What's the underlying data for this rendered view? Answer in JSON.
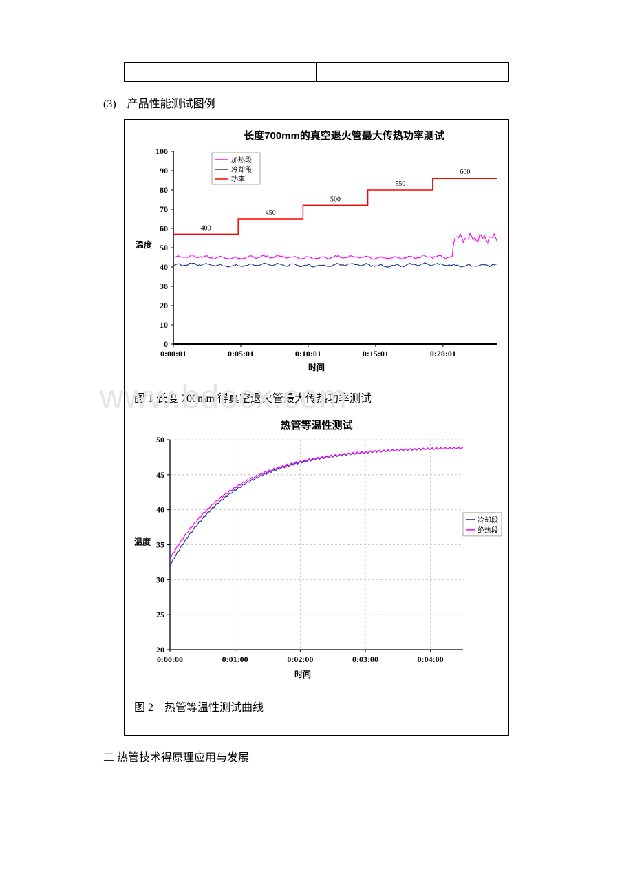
{
  "section_num": "(3)　产品性能测试图例",
  "watermark": "www.bdocx.com",
  "chart1": {
    "type": "line-step",
    "title": "长度700mm的真空退火管最大传热功率测试",
    "title_fontsize": 15,
    "title_font": "SimHei",
    "x_label": "时间",
    "y_label": "温度",
    "label_fontsize": 12,
    "xlim": [
      "0:00:01",
      "0:24:01"
    ],
    "ylim": [
      0,
      100
    ],
    "ytick_step": 10,
    "yticks": [
      0,
      10,
      20,
      30,
      40,
      50,
      60,
      70,
      80,
      90,
      100
    ],
    "xticks": [
      "0:00:01",
      "0:05:01",
      "0:10:01",
      "0:15:01",
      "0:20:01"
    ],
    "background_color": "#ffffff",
    "axis_color": "#000000",
    "grid": false,
    "legend_position": "top-left-inside",
    "legend_border_color": "#808080",
    "series": [
      {
        "name": "加热段",
        "color": "#ff00ff",
        "width": 1.2,
        "type": "line",
        "approx_y": 45,
        "noise": 2,
        "tail_jump_to": 55,
        "tail_jump_at": 0.86
      },
      {
        "name": "冷却段",
        "color": "#233a8f",
        "width": 1.2,
        "type": "line",
        "approx_y": 41,
        "noise": 1.5
      },
      {
        "name": "功率",
        "color": "#ff0000",
        "width": 1.5,
        "type": "step",
        "steps": [
          {
            "x_from": 0.0,
            "x_to": 0.2,
            "y": 57,
            "label": "400",
            "label_dy": -8
          },
          {
            "x_from": 0.2,
            "x_to": 0.4,
            "y": 65,
            "label": "450",
            "label_dy": -8
          },
          {
            "x_from": 0.4,
            "x_to": 0.6,
            "y": 72,
            "label": "500",
            "label_dy": -8
          },
          {
            "x_from": 0.6,
            "x_to": 0.8,
            "y": 80,
            "label": "550",
            "label_dy": -8
          },
          {
            "x_from": 0.8,
            "x_to": 1.0,
            "y": 86,
            "label": "600",
            "label_dy": -8
          }
        ],
        "step_label_fontsize": 10
      }
    ],
    "caption": "图 1  长度 700mm 得真空退火管最大传热功率测试"
  },
  "chart2": {
    "type": "line",
    "title": "热管等温性测试",
    "title_fontsize": 15,
    "title_font": "SimHei",
    "x_label": "时间",
    "y_label": "温度",
    "label_fontsize": 12,
    "xlim": [
      "0:00:00",
      "0:04:30"
    ],
    "ylim": [
      20,
      50
    ],
    "ytick_step": 5,
    "yticks": [
      20,
      25,
      30,
      35,
      40,
      45,
      50
    ],
    "xticks": [
      "0:00:00",
      "0:01:00",
      "0:02:00",
      "0:03:00",
      "0:04:00"
    ],
    "background_color": "#ffffff",
    "axis_color": "#000000",
    "grid": true,
    "grid_style": "dashed",
    "grid_color": "#bfbfbf",
    "legend_position": "right-outside",
    "legend_border_color": "#808080",
    "series": [
      {
        "name": "冷却段",
        "color": "#233a8f",
        "width": 1.2,
        "type": "exp-rise",
        "y_start": 32,
        "y_end": 49,
        "tau": 0.22
      },
      {
        "name": "绝热段",
        "color": "#ff00ff",
        "width": 1.2,
        "type": "exp-rise",
        "y_start": 33,
        "y_end": 49,
        "tau": 0.22
      }
    ],
    "caption": "图 2　热管等温性测试曲线"
  },
  "bottom_heading": "二 热管技术得原理应用与发展"
}
